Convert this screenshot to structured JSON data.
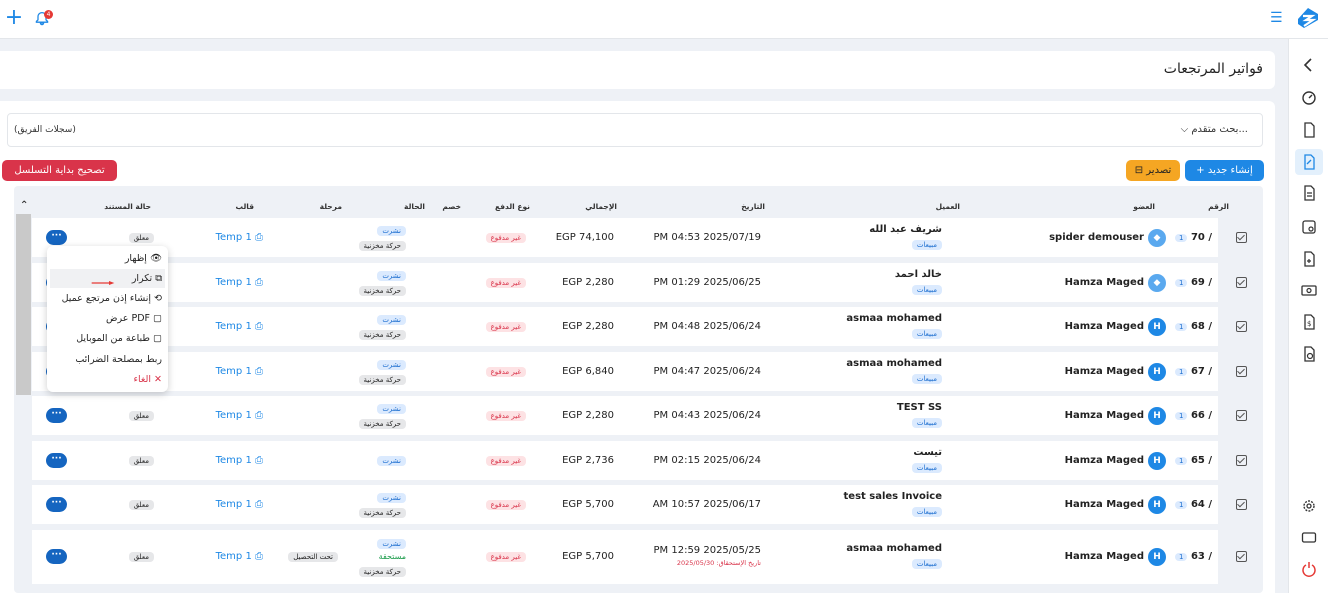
{
  "page": {
    "title": "فواتير المرتجعات",
    "notification_count": "4"
  },
  "filters": {
    "advanced_search": "بحث متقدم...",
    "team_records": "(سجلات الفريق)"
  },
  "toolbar": {
    "new_label": "إنشاء جديد",
    "export_label": "تصدير",
    "fix_sequence_label": "تصحيح بداية التسلسل"
  },
  "table": {
    "headers": {
      "number": "الرقم",
      "member": "العضو",
      "client": "العميل",
      "date": "التاريخ",
      "total": "الإجمالي",
      "payment_type": "نوع الدفع",
      "discount": "خصم",
      "status": "الحالة",
      "stage": "مرحلة",
      "template": "قالب",
      "doc_status": "حالة المستند"
    },
    "rows": [
      {
        "num": "70 /",
        "badge": "1",
        "member": "spider demouser",
        "avatar": "logo",
        "client": "شريف عبد الله",
        "tag": "مبيعات",
        "date": "PM 04:53 2025/07/19",
        "total": "EGP 74,100",
        "payment": "غير مدفوع",
        "status1": "نشرت",
        "status2": "حركة مخزنية",
        "template": "Temp 1",
        "doc": "معلق"
      },
      {
        "num": "69 /",
        "badge": "1",
        "member": "Hamza Maged",
        "avatar": "logo",
        "client": "خالد احمد",
        "tag": "مبيعات",
        "date": "PM 01:29 2025/06/25",
        "total": "EGP 2,280",
        "payment": "غير مدفوع",
        "status1": "نشرت",
        "status2": "حركة مخزنية",
        "template": "Temp 1",
        "doc": ""
      },
      {
        "num": "68 /",
        "badge": "1",
        "member": "Hamza Maged",
        "avatar": "H",
        "client": "asmaa mohamed",
        "tag": "مبيعات",
        "date": "PM 04:48 2025/06/24",
        "total": "EGP 2,280",
        "payment": "غير مدفوع",
        "status1": "نشرت",
        "status2": "حركة مخزنية",
        "template": "Temp 1",
        "doc": ""
      },
      {
        "num": "67 /",
        "badge": "1",
        "member": "Hamza Maged",
        "avatar": "H",
        "client": "asmaa mohamed",
        "tag": "مبيعات",
        "date": "PM 04:47 2025/06/24",
        "total": "EGP 6,840",
        "payment": "غير مدفوع",
        "status1": "نشرت",
        "status2": "حركة مخزنية",
        "template": "Temp 1",
        "doc": ""
      },
      {
        "num": "66 /",
        "badge": "1",
        "member": "Hamza Maged",
        "avatar": "H",
        "client": "TEST SS",
        "tag": "مبيعات",
        "date": "PM 04:43 2025/06/24",
        "total": "EGP 2,280",
        "payment": "غير مدفوع",
        "status1": "نشرت",
        "status2": "حركة مخزنية",
        "template": "Temp 1",
        "doc": "معلق"
      },
      {
        "num": "65 /",
        "badge": "1",
        "member": "Hamza Maged",
        "avatar": "H",
        "client": "تيست",
        "tag": "مبيعات",
        "date": "PM 02:15 2025/06/24",
        "total": "EGP 2,736",
        "payment": "غير مدفوع",
        "status1": "نشرت",
        "status2": "",
        "template": "Temp 1",
        "doc": "معلق"
      },
      {
        "num": "64 /",
        "badge": "1",
        "member": "Hamza Maged",
        "avatar": "H",
        "client": "test sales Invoice",
        "tag": "مبيعات",
        "date": "AM 10:57 2025/06/17",
        "total": "EGP 5,700",
        "payment": "غير مدفوع",
        "status1": "نشرت",
        "status2": "حركة مخزنية",
        "template": "Temp 1",
        "doc": "معلق"
      },
      {
        "num": "63 /",
        "badge": "1",
        "member": "Hamza Maged",
        "avatar": "H",
        "client": "asmaa mohamed",
        "tag": "مبيعات",
        "date": "PM 12:59 2025/05/25",
        "due": "تاريخ الإستحقاق: 2025/05/30",
        "total": "EGP 5,700",
        "payment": "غير مدفوع",
        "status1": "نشرت",
        "status_mid": "مستحقة",
        "status2": "حركة مخزنية",
        "stage": "تحت التحصيل",
        "template": "Temp 1",
        "doc": "معلق"
      }
    ]
  },
  "context_menu": {
    "items": [
      "إظهار",
      "تكرار",
      "إنشاء إذن مرتجع عميل",
      "عرض PDF",
      "طباعة من الموبايل",
      "ربط بمصلحة الضرائب",
      "الغاء"
    ]
  },
  "colors": {
    "primary": "#1e88e5",
    "danger": "#d9344a",
    "warning": "#f5a623"
  }
}
